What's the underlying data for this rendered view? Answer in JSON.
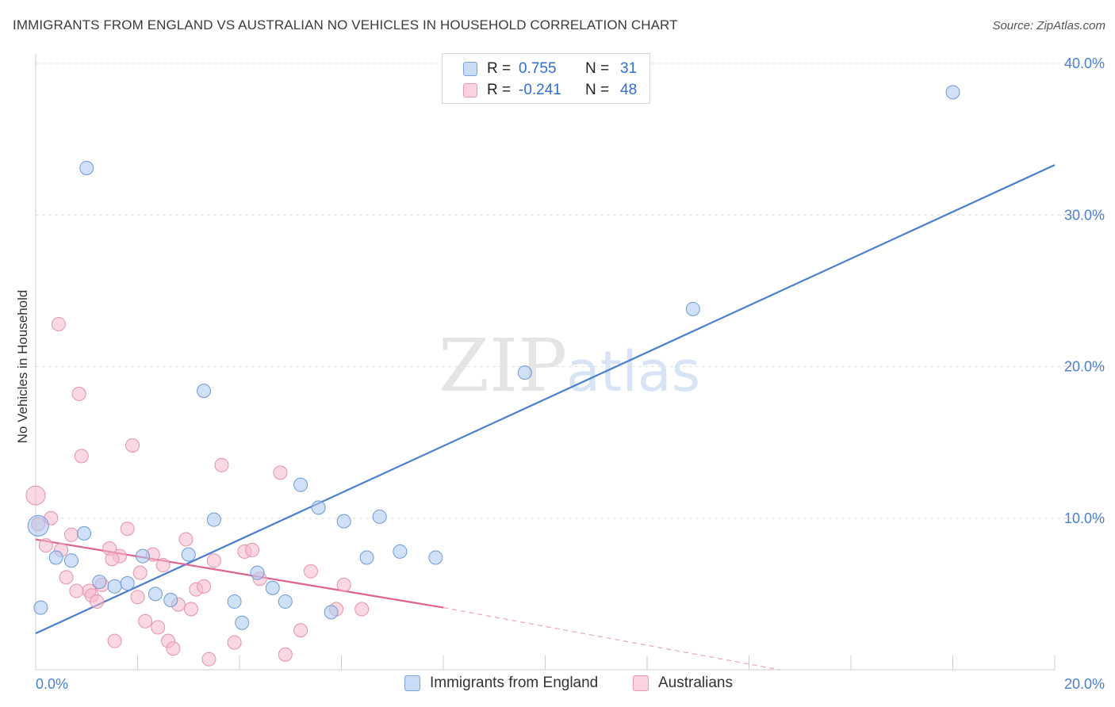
{
  "header": {
    "title": "IMMIGRANTS FROM ENGLAND VS AUSTRALIAN NO VEHICLES IN HOUSEHOLD CORRELATION CHART",
    "source": "Source: ZipAtlas.com"
  },
  "watermark": {
    "zip": "ZIP",
    "atlas": "atlas"
  },
  "legend_top": {
    "rows": [
      {
        "r_label": "R =",
        "r_value": "0.755",
        "n_label": "N =",
        "n_value": "31",
        "color": "#a9c8f0"
      },
      {
        "r_label": "R =",
        "r_value": "-0.241",
        "n_label": "N =",
        "n_value": "48",
        "color": "#f6b8cb"
      }
    ]
  },
  "legend_bottom": {
    "items": [
      {
        "label": "Immigrants from England",
        "color": "#a9c8f0"
      },
      {
        "label": "Australians",
        "color": "#f6b8cb"
      }
    ]
  },
  "chart_data": {
    "type": "scatter",
    "title": "IMMIGRANTS FROM ENGLAND VS AUSTRALIAN NO VEHICLES IN HOUSEHOLD CORRELATION CHART",
    "xlabel": "",
    "ylabel": "No Vehicles in Household",
    "xlim": [
      0,
      20
    ],
    "ylim": [
      0,
      40
    ],
    "x_tick_labels": [
      "0.0%",
      "20.0%"
    ],
    "y_tick_labels": [
      "10.0%",
      "20.0%",
      "30.0%",
      "40.0%"
    ],
    "y_ticks": [
      10,
      20,
      30,
      40
    ],
    "grid": true,
    "legend_position": "top-center",
    "colors": {
      "england": "#4a7fd0",
      "england_fill": "#a9c8f0",
      "australians": "#e0628f",
      "australians_fill": "#f6b8cb"
    },
    "series": [
      {
        "name": "Immigrants from England",
        "x": [
          0.05,
          0.4,
          0.7,
          0.95,
          1.25,
          1.55,
          1.8,
          2.1,
          2.35,
          2.65,
          3.0,
          3.3,
          3.5,
          3.9,
          4.05,
          4.35,
          4.65,
          4.9,
          5.2,
          5.55,
          5.8,
          6.05,
          6.5,
          6.75,
          7.15,
          7.85,
          9.6,
          12.9,
          18.0,
          0.1,
          1.0
        ],
        "y": [
          9.5,
          7.4,
          7.2,
          9.0,
          5.8,
          5.5,
          5.7,
          7.5,
          5.0,
          4.6,
          7.6,
          18.4,
          9.9,
          4.5,
          3.1,
          6.4,
          5.4,
          4.5,
          12.2,
          10.7,
          3.8,
          9.8,
          7.4,
          10.1,
          7.8,
          7.4,
          19.6,
          23.8,
          38.1,
          4.1,
          33.1
        ]
      },
      {
        "name": "Australians",
        "x": [
          0.0,
          0.05,
          0.2,
          0.3,
          0.45,
          0.5,
          0.6,
          0.7,
          0.85,
          0.9,
          1.05,
          1.1,
          1.2,
          1.3,
          1.45,
          1.55,
          1.65,
          1.8,
          1.9,
          2.05,
          2.15,
          2.3,
          2.4,
          2.5,
          2.6,
          2.7,
          2.8,
          2.95,
          3.05,
          3.15,
          3.3,
          3.4,
          3.5,
          3.65,
          3.9,
          4.1,
          4.25,
          4.4,
          4.8,
          5.2,
          5.4,
          5.9,
          6.05,
          6.4,
          0.8,
          1.5,
          2.0,
          4.9
        ],
        "y": [
          11.5,
          9.6,
          8.2,
          10.0,
          22.8,
          7.9,
          6.1,
          8.9,
          18.2,
          14.1,
          5.2,
          4.9,
          4.5,
          5.6,
          8.0,
          1.9,
          7.5,
          9.3,
          14.8,
          6.4,
          3.2,
          7.6,
          2.8,
          6.9,
          1.9,
          1.4,
          4.3,
          8.6,
          4.0,
          5.3,
          5.5,
          0.7,
          7.2,
          13.5,
          1.8,
          7.8,
          7.9,
          6.0,
          13.0,
          2.6,
          6.5,
          4.0,
          5.6,
          4.0,
          5.2,
          7.3,
          4.8,
          1.0
        ]
      }
    ],
    "trendlines": [
      {
        "series": "Immigrants from England",
        "from": [
          0,
          2.4
        ],
        "to": [
          20,
          33.3
        ]
      },
      {
        "series": "Australians",
        "from": [
          0,
          8.6
        ],
        "to": [
          8.0,
          4.1
        ],
        "dashed_to": [
          14.6,
          0.0
        ]
      }
    ]
  }
}
